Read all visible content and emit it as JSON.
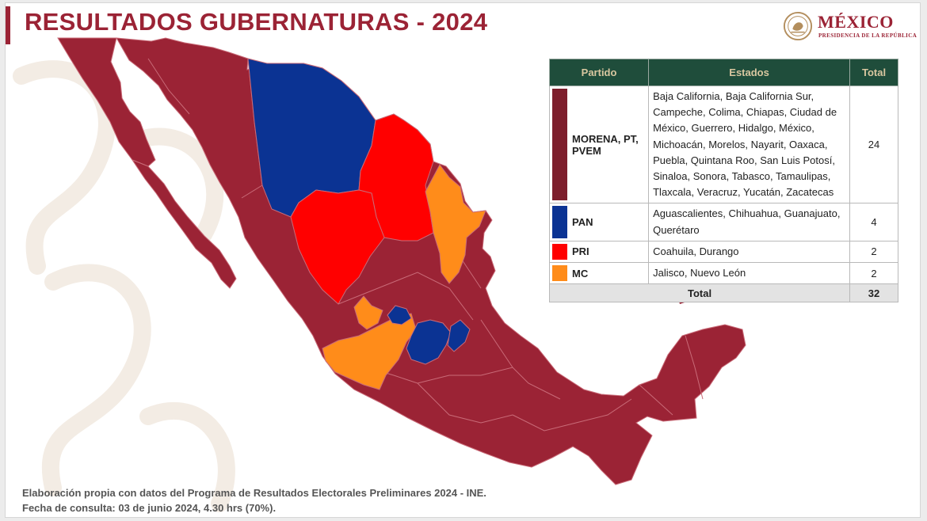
{
  "header": {
    "title": "RESULTADOS GUBERNATURAS - 2024"
  },
  "logo": {
    "main": "MÉXICO",
    "sub": "PRESIDENCIA DE LA REPÚBLICA",
    "icon": "national-seal-icon"
  },
  "colors": {
    "brand": "#9b2335",
    "morena": "#9b2335",
    "pan": "#0b3393",
    "pri": "#ff0000",
    "mc": "#ff8c1a",
    "table_header": "#1f4d3b"
  },
  "table": {
    "headers": [
      "Partido",
      "Estados",
      "Total"
    ],
    "rows": [
      {
        "party": "MORENA, PT, PVEM",
        "swatch": "#7d1e2c",
        "states": "Baja California, Baja California Sur, Campeche, Colima, Chiapas, Ciudad de México, Guerrero, Hidalgo, México, Michoacán, Morelos, Nayarit, Oaxaca, Puebla, Quintana Roo, San Luis Potosí, Sinaloa, Sonora, Tabasco, Tamaulipas, Tlaxcala, Veracruz, Yucatán, Zacatecas",
        "total": "24"
      },
      {
        "party": "PAN",
        "swatch": "#0b3393",
        "states": "Aguascalientes, Chihuahua, Guanajuato, Querétaro",
        "total": "4"
      },
      {
        "party": "PRI",
        "swatch": "#ff0000",
        "states": "Coahuila, Durango",
        "total": "2"
      },
      {
        "party": "MC",
        "swatch": "#ff8c1a",
        "states": "Jalisco, Nuevo León",
        "total": "2"
      }
    ],
    "total_label": "Total",
    "total_value": "32"
  },
  "footer": {
    "line1": "Elaboración propia con datos del Programa de Resultados Electorales Preliminares 2024 - INE.",
    "line2": "Fecha de consulta: 03 de junio 2024, 4.30 hrs (70%)."
  }
}
